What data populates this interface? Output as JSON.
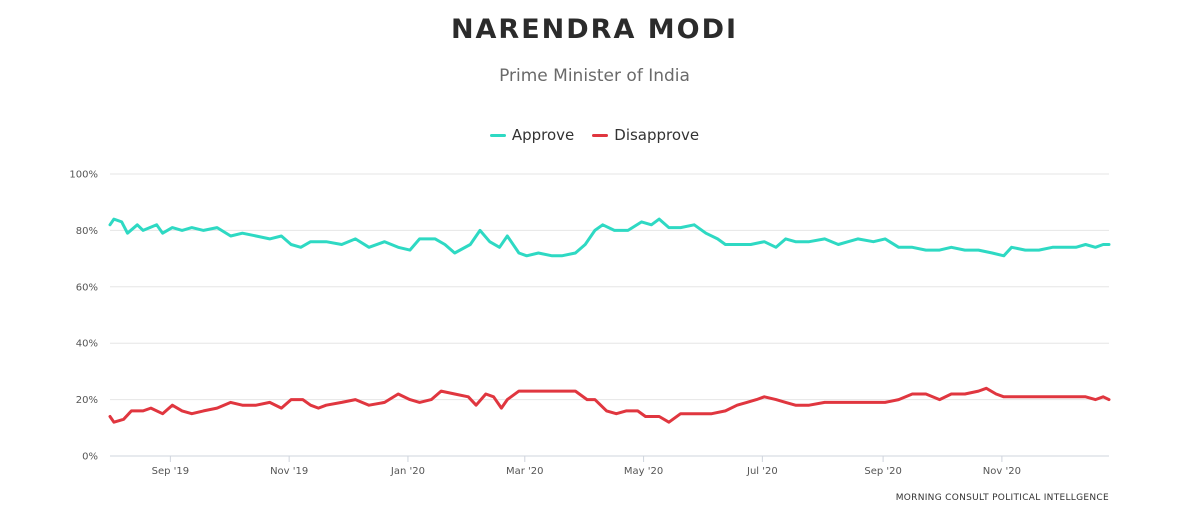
{
  "title": "NARENDRA MODI",
  "subtitle": "Prime Minister of India",
  "credit": "MORNING CONSULT POLITICAL INTELLGENCE",
  "colors": {
    "approve": "#2ed9c3",
    "disapprove": "#e0363f",
    "grid": "#e6e6e6"
  },
  "chart_data": {
    "type": "line",
    "title": "NARENDRA MODI",
    "subtitle": "Prime Minister of India",
    "xlabel": "",
    "ylabel": "",
    "ylim": [
      0,
      100
    ],
    "y_ticks": [
      "0%",
      "20%",
      "40%",
      "60%",
      "80%",
      "100%"
    ],
    "y_tick_values": [
      0,
      20,
      40,
      60,
      80,
      100
    ],
    "x_ticks": [
      "Sep '19",
      "Nov '19",
      "Jan '20",
      "Mar '20",
      "May '20",
      "Jul '20",
      "Sep '20",
      "Nov '20"
    ],
    "x_tick_values": [
      "2019-09-01",
      "2019-11-01",
      "2020-01-01",
      "2020-03-01",
      "2020-05-01",
      "2020-07-01",
      "2020-09-01",
      "2020-11-01"
    ],
    "xlim": [
      "2019-08-01",
      "2020-12-26"
    ],
    "legend": "top-center",
    "grid": true,
    "series": [
      {
        "name": "Approve",
        "color": "#2ed9c3",
        "points": [
          [
            "2019-08-01",
            82
          ],
          [
            "2019-08-03",
            84
          ],
          [
            "2019-08-07",
            83
          ],
          [
            "2019-08-10",
            79
          ],
          [
            "2019-08-15",
            82
          ],
          [
            "2019-08-18",
            80
          ],
          [
            "2019-08-25",
            82
          ],
          [
            "2019-08-28",
            79
          ],
          [
            "2019-09-02",
            81
          ],
          [
            "2019-09-07",
            80
          ],
          [
            "2019-09-12",
            81
          ],
          [
            "2019-09-18",
            80
          ],
          [
            "2019-09-25",
            81
          ],
          [
            "2019-10-02",
            78
          ],
          [
            "2019-10-08",
            79
          ],
          [
            "2019-10-15",
            78
          ],
          [
            "2019-10-22",
            77
          ],
          [
            "2019-10-28",
            78
          ],
          [
            "2019-11-02",
            75
          ],
          [
            "2019-11-07",
            74
          ],
          [
            "2019-11-12",
            76
          ],
          [
            "2019-11-20",
            76
          ],
          [
            "2019-11-28",
            75
          ],
          [
            "2019-12-05",
            77
          ],
          [
            "2019-12-12",
            74
          ],
          [
            "2019-12-20",
            76
          ],
          [
            "2019-12-27",
            74
          ],
          [
            "2020-01-02",
            73
          ],
          [
            "2020-01-07",
            77
          ],
          [
            "2020-01-15",
            77
          ],
          [
            "2020-01-20",
            75
          ],
          [
            "2020-01-25",
            72
          ],
          [
            "2020-02-02",
            75
          ],
          [
            "2020-02-07",
            80
          ],
          [
            "2020-02-12",
            76
          ],
          [
            "2020-02-17",
            74
          ],
          [
            "2020-02-21",
            78
          ],
          [
            "2020-02-27",
            72
          ],
          [
            "2020-03-02",
            71
          ],
          [
            "2020-03-08",
            72
          ],
          [
            "2020-03-15",
            71
          ],
          [
            "2020-03-20",
            71
          ],
          [
            "2020-03-27",
            72
          ],
          [
            "2020-04-01",
            75
          ],
          [
            "2020-04-06",
            80
          ],
          [
            "2020-04-10",
            82
          ],
          [
            "2020-04-16",
            80
          ],
          [
            "2020-04-23",
            80
          ],
          [
            "2020-04-30",
            83
          ],
          [
            "2020-05-05",
            82
          ],
          [
            "2020-05-09",
            84
          ],
          [
            "2020-05-14",
            81
          ],
          [
            "2020-05-20",
            81
          ],
          [
            "2020-05-27",
            82
          ],
          [
            "2020-06-02",
            79
          ],
          [
            "2020-06-08",
            77
          ],
          [
            "2020-06-12",
            75
          ],
          [
            "2020-06-25",
            75
          ],
          [
            "2020-07-02",
            76
          ],
          [
            "2020-07-08",
            74
          ],
          [
            "2020-07-13",
            77
          ],
          [
            "2020-07-18",
            76
          ],
          [
            "2020-07-25",
            76
          ],
          [
            "2020-08-02",
            77
          ],
          [
            "2020-08-09",
            75
          ],
          [
            "2020-08-14",
            76
          ],
          [
            "2020-08-19",
            77
          ],
          [
            "2020-08-27",
            76
          ],
          [
            "2020-09-02",
            77
          ],
          [
            "2020-09-09",
            74
          ],
          [
            "2020-09-16",
            74
          ],
          [
            "2020-09-23",
            73
          ],
          [
            "2020-09-30",
            73
          ],
          [
            "2020-10-06",
            74
          ],
          [
            "2020-10-13",
            73
          ],
          [
            "2020-10-20",
            73
          ],
          [
            "2020-10-27",
            72
          ],
          [
            "2020-11-02",
            71
          ],
          [
            "2020-11-06",
            74
          ],
          [
            "2020-11-13",
            73
          ],
          [
            "2020-11-20",
            73
          ],
          [
            "2020-11-27",
            74
          ],
          [
            "2020-12-02",
            74
          ],
          [
            "2020-12-09",
            74
          ],
          [
            "2020-12-14",
            75
          ],
          [
            "2020-12-19",
            74
          ],
          [
            "2020-12-23",
            75
          ],
          [
            "2020-12-26",
            75
          ]
        ]
      },
      {
        "name": "Disapprove",
        "color": "#e0363f",
        "points": [
          [
            "2019-08-01",
            14
          ],
          [
            "2019-08-03",
            12
          ],
          [
            "2019-08-08",
            13
          ],
          [
            "2019-08-12",
            16
          ],
          [
            "2019-08-18",
            16
          ],
          [
            "2019-08-22",
            17
          ],
          [
            "2019-08-28",
            15
          ],
          [
            "2019-09-02",
            18
          ],
          [
            "2019-09-07",
            16
          ],
          [
            "2019-09-12",
            15
          ],
          [
            "2019-09-18",
            16
          ],
          [
            "2019-09-25",
            17
          ],
          [
            "2019-10-02",
            19
          ],
          [
            "2019-10-08",
            18
          ],
          [
            "2019-10-15",
            18
          ],
          [
            "2019-10-22",
            19
          ],
          [
            "2019-10-28",
            17
          ],
          [
            "2019-11-02",
            20
          ],
          [
            "2019-11-08",
            20
          ],
          [
            "2019-11-12",
            18
          ],
          [
            "2019-11-16",
            17
          ],
          [
            "2019-11-20",
            18
          ],
          [
            "2019-11-28",
            19
          ],
          [
            "2019-12-05",
            20
          ],
          [
            "2019-12-12",
            18
          ],
          [
            "2019-12-20",
            19
          ],
          [
            "2019-12-27",
            22
          ],
          [
            "2020-01-02",
            20
          ],
          [
            "2020-01-07",
            19
          ],
          [
            "2020-01-13",
            20
          ],
          [
            "2020-01-18",
            23
          ],
          [
            "2020-01-25",
            22
          ],
          [
            "2020-02-01",
            21
          ],
          [
            "2020-02-05",
            18
          ],
          [
            "2020-02-10",
            22
          ],
          [
            "2020-02-14",
            21
          ],
          [
            "2020-02-18",
            17
          ],
          [
            "2020-02-21",
            20
          ],
          [
            "2020-02-27",
            23
          ],
          [
            "2020-03-02",
            23
          ],
          [
            "2020-03-07",
            23
          ],
          [
            "2020-03-12",
            23
          ],
          [
            "2020-03-20",
            23
          ],
          [
            "2020-03-27",
            23
          ],
          [
            "2020-04-02",
            20
          ],
          [
            "2020-04-06",
            20
          ],
          [
            "2020-04-12",
            16
          ],
          [
            "2020-04-17",
            15
          ],
          [
            "2020-04-22",
            16
          ],
          [
            "2020-04-28",
            16
          ],
          [
            "2020-05-02",
            14
          ],
          [
            "2020-05-09",
            14
          ],
          [
            "2020-05-14",
            12
          ],
          [
            "2020-05-20",
            15
          ],
          [
            "2020-05-27",
            15
          ],
          [
            "2020-06-05",
            15
          ],
          [
            "2020-06-12",
            16
          ],
          [
            "2020-06-18",
            18
          ],
          [
            "2020-06-23",
            19
          ],
          [
            "2020-06-28",
            20
          ],
          [
            "2020-07-02",
            21
          ],
          [
            "2020-07-08",
            20
          ],
          [
            "2020-07-13",
            19
          ],
          [
            "2020-07-18",
            18
          ],
          [
            "2020-07-25",
            18
          ],
          [
            "2020-08-02",
            19
          ],
          [
            "2020-08-09",
            19
          ],
          [
            "2020-08-14",
            19
          ],
          [
            "2020-08-19",
            19
          ],
          [
            "2020-08-27",
            19
          ],
          [
            "2020-09-02",
            19
          ],
          [
            "2020-09-09",
            20
          ],
          [
            "2020-09-16",
            22
          ],
          [
            "2020-09-23",
            22
          ],
          [
            "2020-09-30",
            20
          ],
          [
            "2020-10-06",
            22
          ],
          [
            "2020-10-13",
            22
          ],
          [
            "2020-10-20",
            23
          ],
          [
            "2020-10-24",
            24
          ],
          [
            "2020-10-29",
            22
          ],
          [
            "2020-11-02",
            21
          ],
          [
            "2020-11-06",
            21
          ],
          [
            "2020-11-13",
            21
          ],
          [
            "2020-11-20",
            21
          ],
          [
            "2020-11-27",
            21
          ],
          [
            "2020-12-02",
            21
          ],
          [
            "2020-12-09",
            21
          ],
          [
            "2020-12-14",
            21
          ],
          [
            "2020-12-19",
            20
          ],
          [
            "2020-12-23",
            21
          ],
          [
            "2020-12-26",
            20
          ]
        ]
      }
    ]
  },
  "legend_items": [
    {
      "label": "Approve",
      "color": "#2ed9c3"
    },
    {
      "label": "Disapprove",
      "color": "#e0363f"
    }
  ]
}
